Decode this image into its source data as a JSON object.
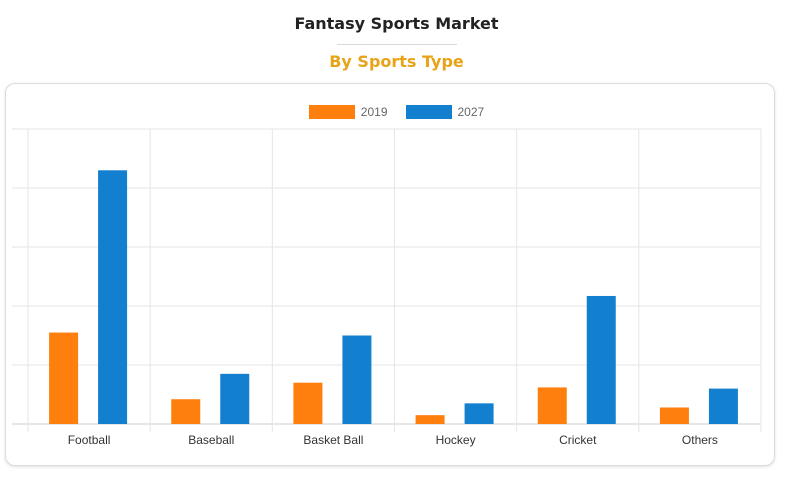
{
  "title": "Fantasy Sports Market",
  "subtitle": "By Sports Type",
  "colors": {
    "subtitle": "#e8a317",
    "series_2019": "#ff7f0e",
    "series_2027": "#127fcf",
    "grid": "#e6e6e6"
  },
  "chart_data": {
    "type": "bar",
    "categories": [
      "Football",
      "Baseball",
      "Basket Ball",
      "Hockey",
      "Cricket",
      "Others"
    ],
    "series": [
      {
        "name": "2019",
        "values": [
          1.55,
          0.42,
          0.7,
          0.15,
          0.62,
          0.28
        ]
      },
      {
        "name": "2027",
        "values": [
          4.3,
          0.85,
          1.5,
          0.35,
          2.17,
          0.6
        ]
      }
    ],
    "ylim": [
      0,
      5
    ],
    "grid": true,
    "legend": "top-center",
    "xlabel": "",
    "ylabel": ""
  }
}
